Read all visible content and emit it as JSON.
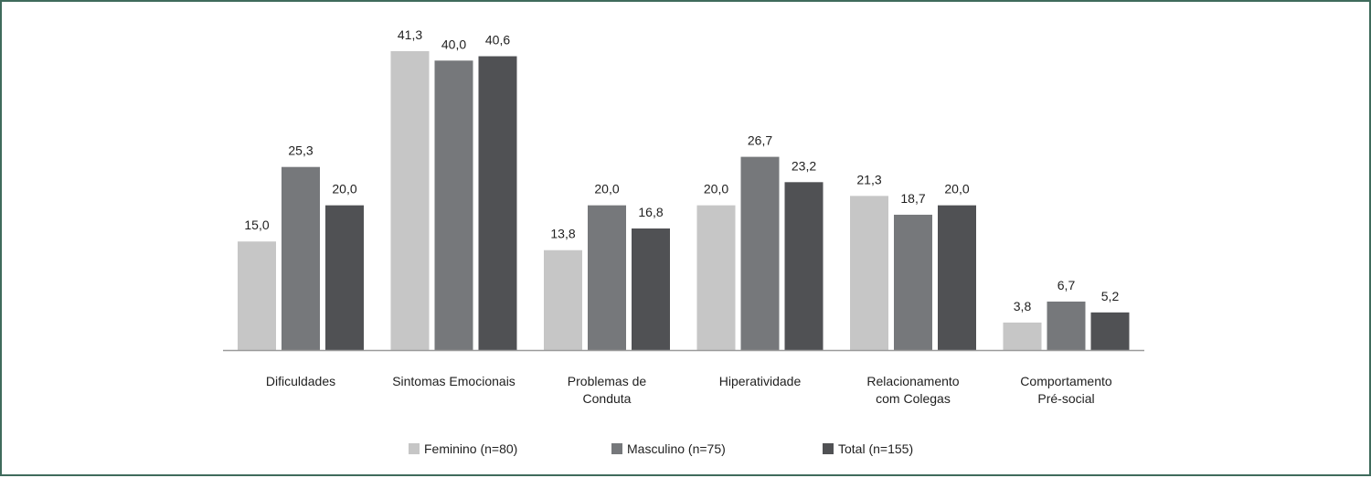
{
  "chart_data": {
    "type": "bar",
    "title": "",
    "xlabel": "",
    "ylabel": "",
    "ylim": [
      0,
      45
    ],
    "grid": false,
    "legend_position": "bottom",
    "categories": [
      [
        "Dificuldades"
      ],
      [
        "Sintomas Emocionais"
      ],
      [
        "Problemas de",
        "Conduta"
      ],
      [
        "Hiperatividade"
      ],
      [
        "Relacionamento",
        "com Colegas"
      ],
      [
        "Comportamento",
        "Pré-social"
      ]
    ],
    "series": [
      {
        "name": "Feminino (n=80)",
        "color": "#c6c6c6",
        "values": [
          15.0,
          41.3,
          13.8,
          20.0,
          21.3,
          3.8
        ],
        "labels": [
          "15,0",
          "41,3",
          "13,8",
          "20,0",
          "21,3",
          "3,8"
        ]
      },
      {
        "name": "Masculino (n=75)",
        "color": "#76787b",
        "values": [
          25.3,
          40.0,
          20.0,
          26.7,
          18.7,
          6.7
        ],
        "labels": [
          "25,3",
          "40,0",
          "20,0",
          "26,7",
          "18,7",
          "6,7"
        ]
      },
      {
        "name": "Total (n=155)",
        "color": "#505154",
        "values": [
          20.0,
          40.6,
          16.8,
          23.2,
          20.0,
          5.2
        ],
        "labels": [
          "20,0",
          "40,6",
          "16,8",
          "23,2",
          "20,0",
          "5,2"
        ]
      }
    ],
    "axis_color": "#9a9a9a",
    "frame_color": "#3f6b5c"
  }
}
